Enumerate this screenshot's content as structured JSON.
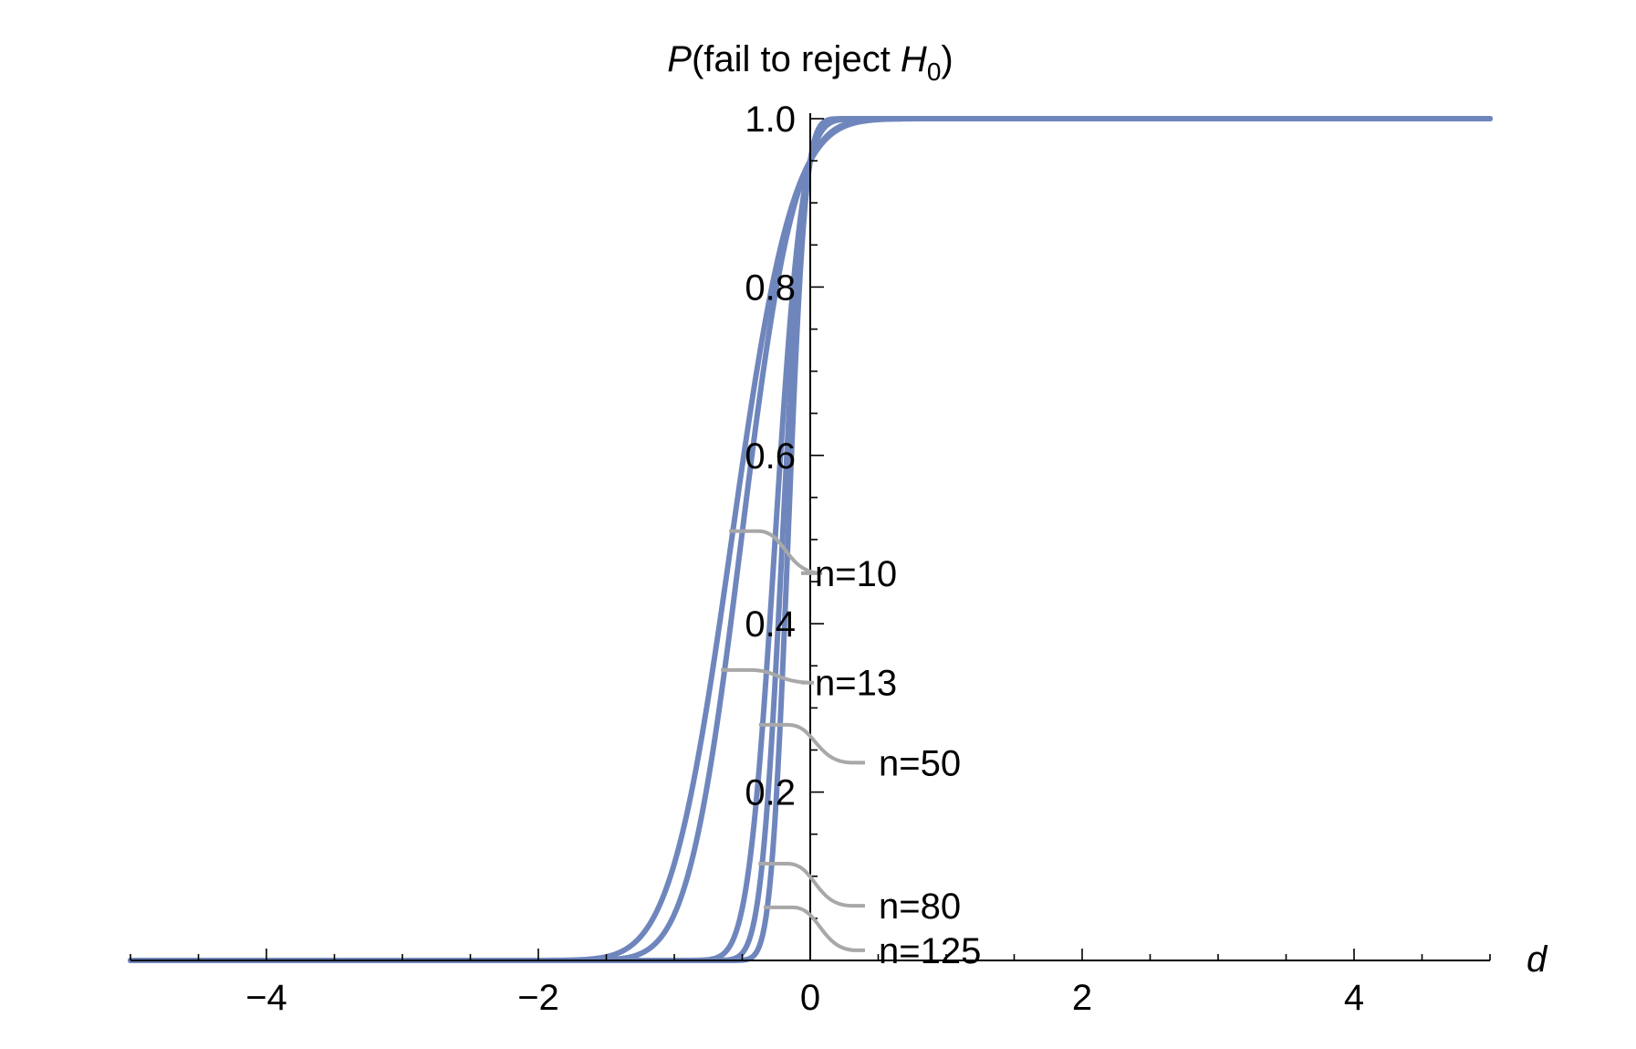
{
  "chart_data": {
    "type": "line",
    "title": "",
    "ylabel": {
      "prefix": "P",
      "text": "(fail to reject ",
      "var": "H",
      "sub": "0",
      "suffix": ")"
    },
    "xlabel": "d",
    "xlim": [
      -5,
      5
    ],
    "ylim": [
      0,
      1
    ],
    "x_ticks": [
      -4,
      -2,
      0,
      2,
      4
    ],
    "x_tick_labels": [
      "−4",
      "−2",
      "0",
      "2",
      "4"
    ],
    "y_ticks": [
      0.2,
      0.4,
      0.6,
      0.8,
      1.0
    ],
    "y_tick_labels": [
      "0.2",
      "0.4",
      "0.6",
      "0.8",
      "1.0"
    ],
    "grid": false,
    "legend": "none",
    "series_color": "#6f86bd",
    "leader_color": "#a8a8a8",
    "series": [
      {
        "name": "n=10",
        "n": 10,
        "label_y": 0.46,
        "anchor_y": 0.51
      },
      {
        "name": "n=13",
        "n": 13,
        "label_y": 0.33,
        "anchor_y": 0.345
      },
      {
        "name": "n=50",
        "n": 50,
        "label_y": 0.235,
        "anchor_y": 0.28
      },
      {
        "name": "n=80",
        "n": 80,
        "label_y": 0.065,
        "anchor_y": 0.115
      },
      {
        "name": "n=125",
        "n": 125,
        "label_y": 0.012,
        "anchor_y": 0.063
      }
    ]
  }
}
